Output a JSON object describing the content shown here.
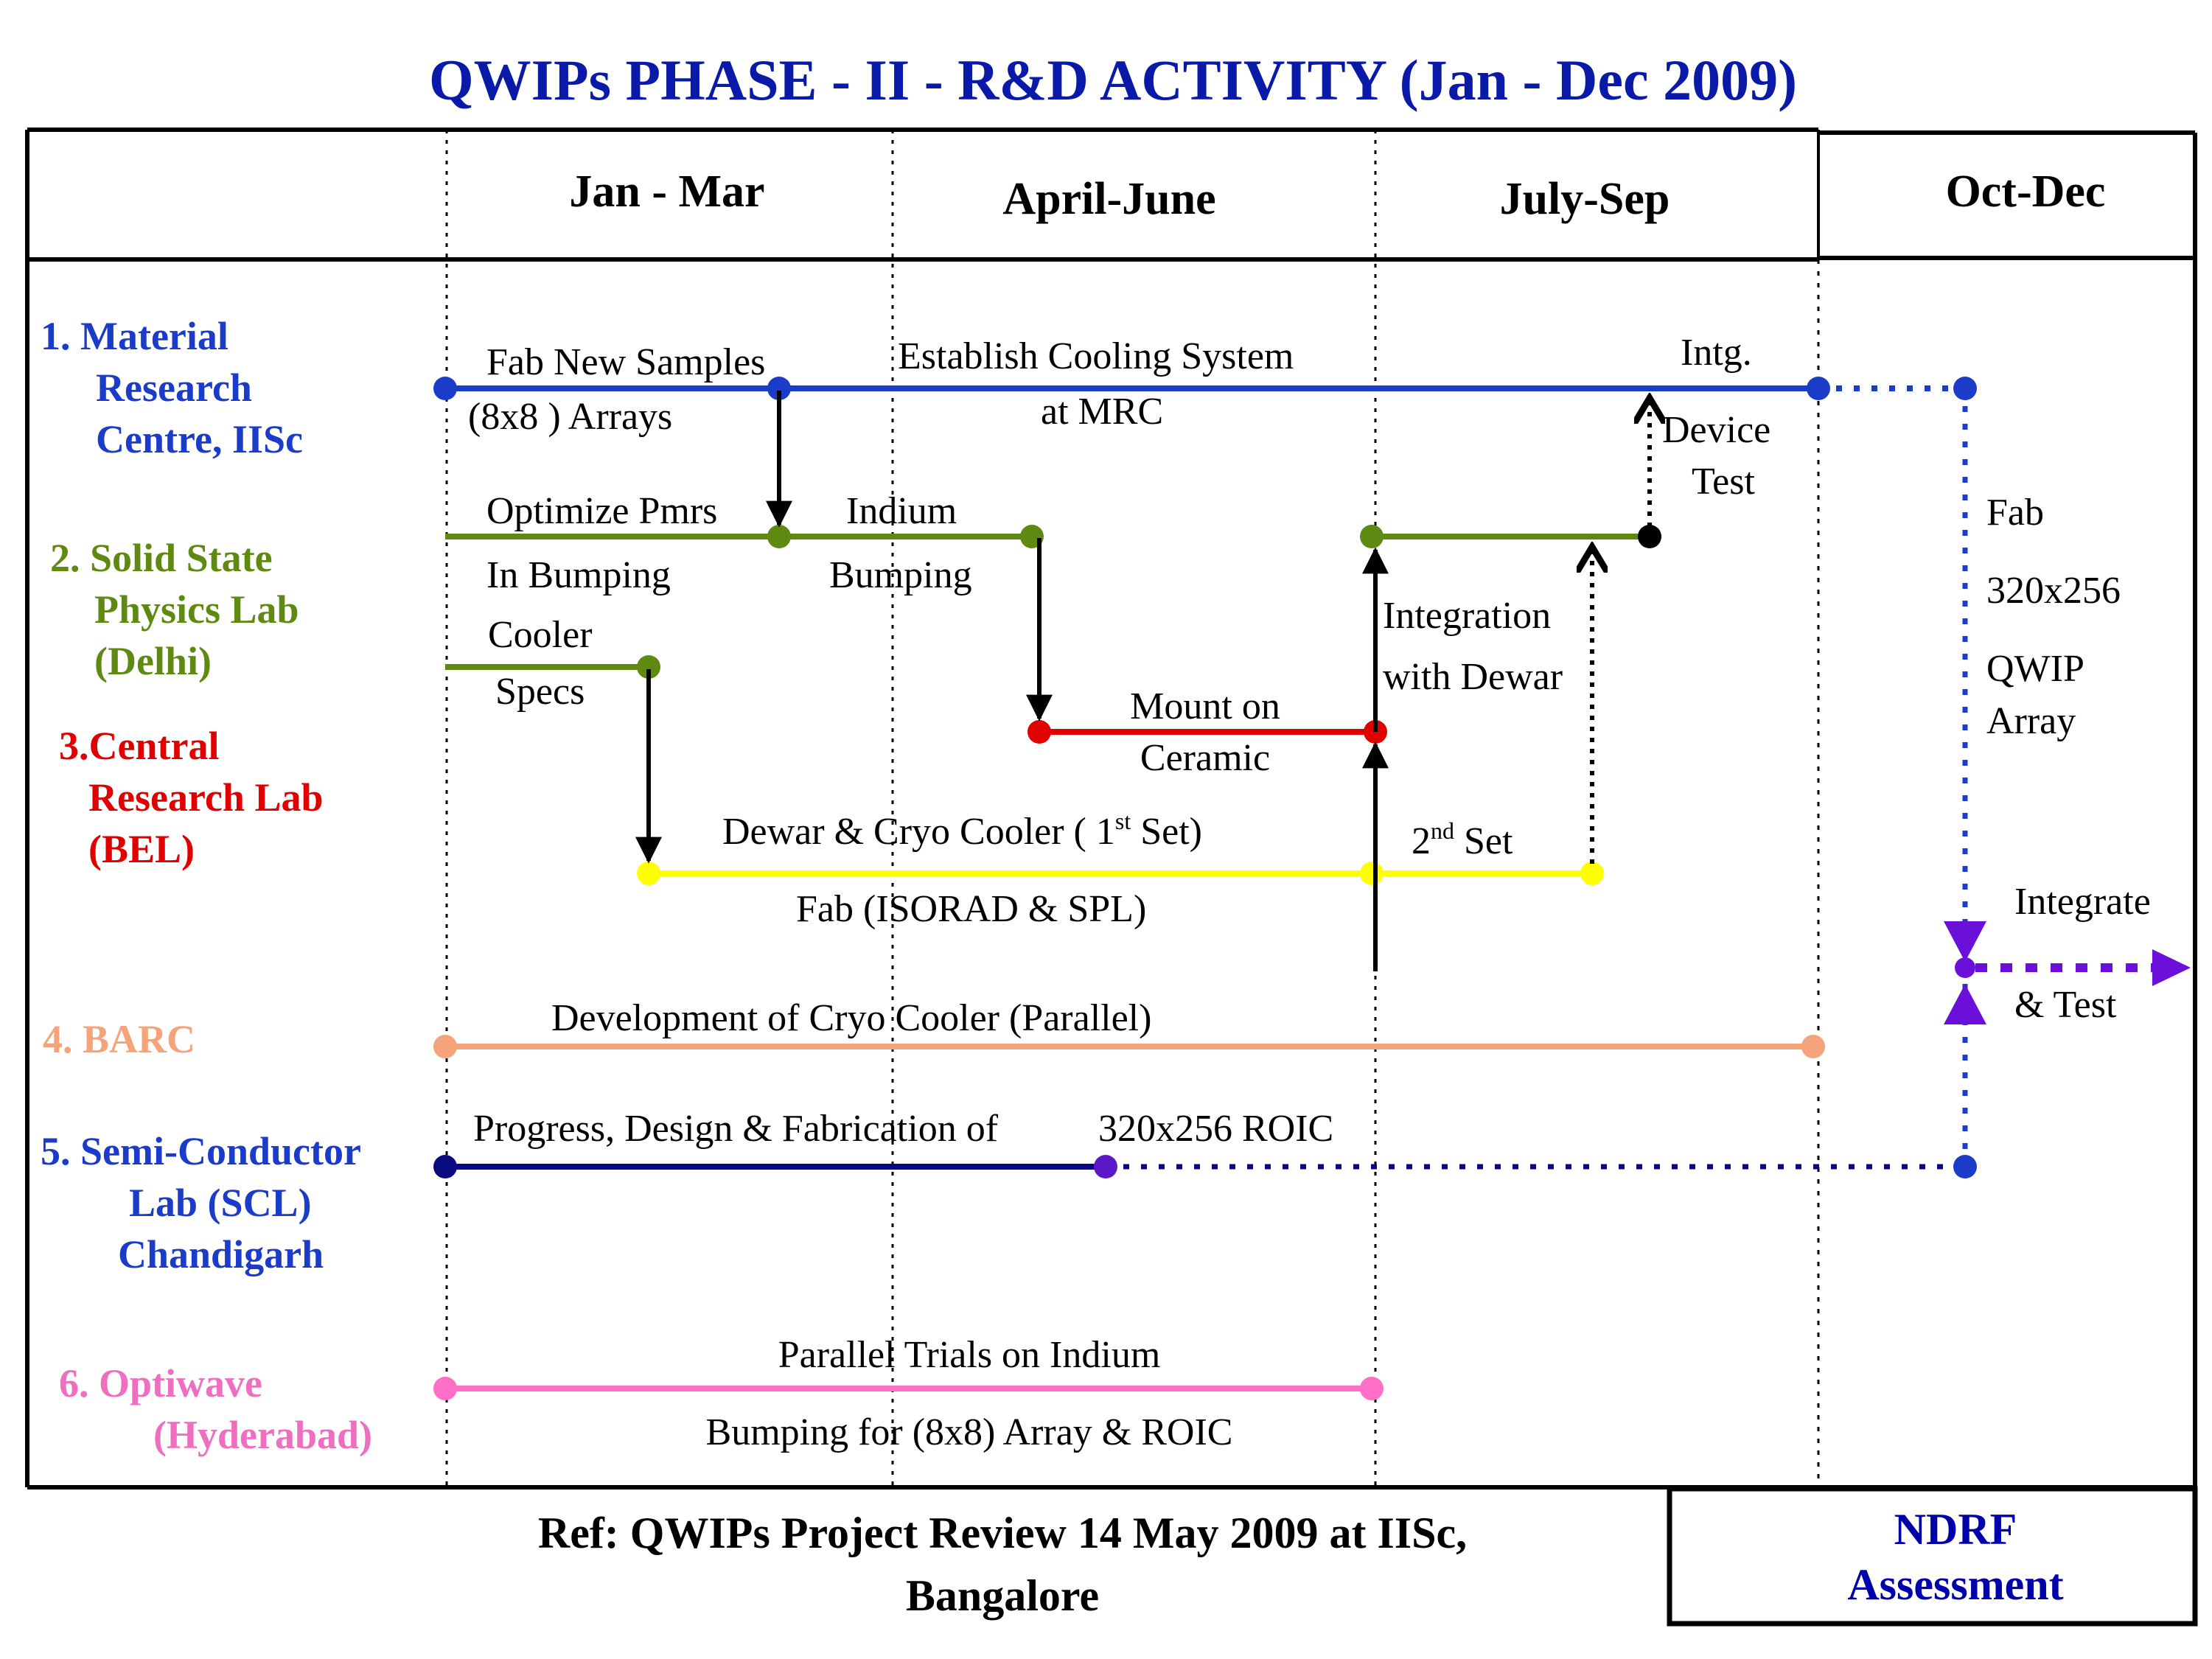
{
  "title": "QWIPs PHASE - II - R&D ACTIVITY (Jan - Dec 2009)",
  "quarters": [
    "Jan - Mar",
    "April-June",
    "July-Sep",
    "Oct-Dec"
  ],
  "organizations": [
    {
      "lines": [
        "1.  Material",
        "Research",
        "Centre, IISc"
      ],
      "color": "#1a3cc8"
    },
    {
      "lines": [
        "2. Solid State",
        "Physics Lab",
        "(Delhi)"
      ],
      "color": "#5f8a12"
    },
    {
      "lines": [
        "3.Central",
        "Research Lab",
        "(BEL)"
      ],
      "color": "#e00000"
    },
    {
      "lines": [
        "4. BARC"
      ],
      "color": "#f4a37a"
    },
    {
      "lines": [
        "5.  Semi-Conductor",
        "Lab (SCL)",
        "Chandigarh"
      ],
      "color": "#1a3cc8"
    },
    {
      "lines": [
        "6. Optiwave",
        "(Hyderabad)"
      ],
      "color": "#ee6ec0"
    }
  ],
  "labels": {
    "fab_new_samples": "Fab New Samples",
    "arrays_8x8": "(8x8 ) Arrays",
    "establish_cooling": "Establish Cooling System",
    "at_mrc": "at MRC",
    "intg": "Intg.",
    "device": "Device",
    "test": "Test",
    "optimize_pmrs": "Optimize Pmrs",
    "in_bumping": "In Bumping",
    "indium": "Indium",
    "bumping": "Bumping",
    "cooler": "Cooler",
    "specs": "Specs",
    "integration": "Integration",
    "with_dewar": "with Dewar",
    "mount_on": "Mount on",
    "ceramic": "Ceramic",
    "dewar_prefix": "Dewar & Cryo Cooler ( 1",
    "dewar_sup": "st",
    "dewar_suffix": " Set)",
    "fab_isorad": "Fab (ISORAD & SPL)",
    "second_prefix": "2",
    "second_sup": "nd",
    "second_suffix": " Set",
    "fab": "Fab",
    "fab_size": "320x256",
    "qwip": "QWIP",
    "array": "Array",
    "integrate": "Integrate",
    "and_test": "& Test",
    "cryo_dev": "Development of Cryo Cooler (Parallel)",
    "progress": "Progress, Design & Fabrication of",
    "roic": "320x256 ROIC",
    "parallel_trials": "Parallel Trials on Indium",
    "bumping_for": "Bumping for (8x8) Array & ROIC"
  },
  "footer": {
    "ref_line1": "Ref: QWIPs Project Review  14 May 2009 at IISc,",
    "ref_line2": "Bangalore",
    "ndrf_line1": "NDRF",
    "ndrf_line2": "Assessment"
  },
  "colors": {
    "title": "#0a1aa8",
    "iisc": "#1a3cc8",
    "sspl": "#5f8a12",
    "bel": "#e00000",
    "dewar": "#ffff00",
    "barc": "#f4a37a",
    "scl": "#0a0a80",
    "scl_end": "#5a18c8",
    "optiwave": "#ff6ec7",
    "integrate": "#6a10d8"
  }
}
